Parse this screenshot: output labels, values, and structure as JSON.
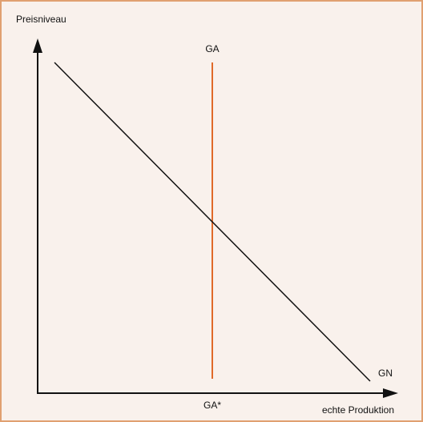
{
  "axes": {
    "y_label": "Preisniveau",
    "x_label": "echte Produktion"
  },
  "curves": [
    {
      "label": "GA"
    },
    {
      "label": "GN"
    }
  ],
  "x_marker": {
    "label": "GA*"
  }
}
